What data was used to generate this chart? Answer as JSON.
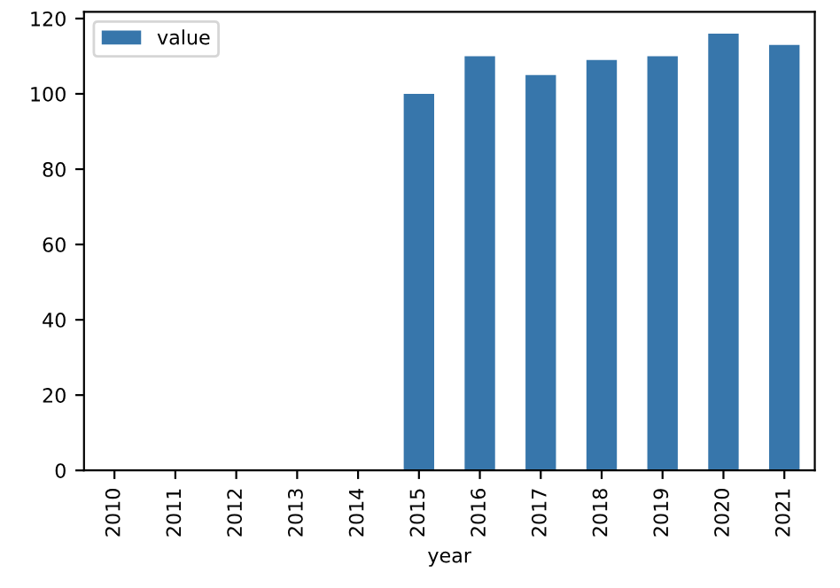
{
  "chart_data": {
    "type": "bar",
    "xlabel": "year",
    "categories": [
      "2010",
      "2011",
      "2012",
      "2013",
      "2014",
      "2015",
      "2016",
      "2017",
      "2018",
      "2019",
      "2020",
      "2021"
    ],
    "series": [
      {
        "name": "value",
        "color": "#3776ab",
        "values": [
          null,
          null,
          null,
          null,
          null,
          100,
          110,
          105,
          109,
          110,
          116,
          113
        ]
      }
    ],
    "ylim": [
      0,
      121.8
    ],
    "yticks": [
      0,
      20,
      40,
      60,
      80,
      100,
      120
    ],
    "legend": "top left",
    "grid": false
  }
}
